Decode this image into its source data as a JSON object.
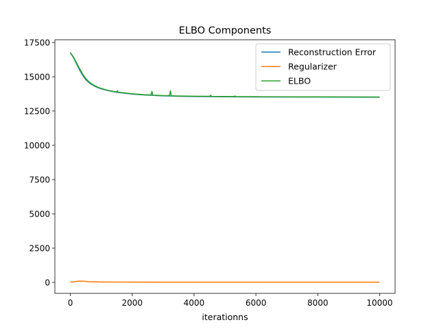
{
  "chart_data": {
    "type": "line",
    "title": "ELBO Components",
    "xlabel": "iterationns",
    "ylabel": "",
    "xlim": [
      -500,
      10500
    ],
    "ylim": [
      -800,
      17700
    ],
    "xticks": [
      0,
      2000,
      4000,
      6000,
      8000,
      10000
    ],
    "yticks": [
      0,
      2500,
      5000,
      7500,
      10000,
      12500,
      15000,
      17500
    ],
    "grid": false,
    "legend_position": "top-right",
    "series": [
      {
        "name": "Reconstruction Error",
        "color": "#1f77b4",
        "x": [
          0,
          100,
          200,
          300,
          400,
          500,
          600,
          700,
          800,
          900,
          1000,
          1200,
          1400,
          1600,
          1800,
          2000,
          2200,
          2400,
          2600,
          2800,
          3000,
          3500,
          4000,
          4500,
          5000,
          6000,
          7000,
          8000,
          9000,
          10000
        ],
        "y": [
          16750,
          16400,
          15950,
          15500,
          15100,
          14800,
          14580,
          14420,
          14300,
          14200,
          14120,
          14000,
          13910,
          13840,
          13790,
          13740,
          13700,
          13670,
          13650,
          13630,
          13610,
          13580,
          13560,
          13550,
          13540,
          13530,
          13520,
          13520,
          13515,
          13510
        ]
      },
      {
        "name": "Regularizer",
        "color": "#ff7f0e",
        "x": [
          0,
          100,
          200,
          300,
          400,
          500,
          600,
          800,
          1000,
          1500,
          2000,
          3000,
          4000,
          5000,
          6000,
          7000,
          8000,
          9000,
          10000
        ],
        "y": [
          20,
          40,
          70,
          90,
          85,
          70,
          55,
          40,
          30,
          25,
          20,
          18,
          18,
          17,
          17,
          16,
          16,
          16,
          15
        ]
      },
      {
        "name": "ELBO",
        "color": "#2ca02c",
        "x": [
          0,
          100,
          200,
          300,
          400,
          500,
          600,
          700,
          800,
          900,
          1000,
          1200,
          1400,
          1500,
          1520,
          1540,
          1600,
          1800,
          2000,
          2200,
          2400,
          2600,
          2640,
          2660,
          2680,
          2800,
          3000,
          3200,
          3240,
          3260,
          3280,
          3500,
          4000,
          4500,
          4540,
          4560,
          5000,
          5300,
          5320,
          5340,
          6000,
          7000,
          8000,
          9000,
          10000
        ],
        "y": [
          16770,
          16440,
          16020,
          15590,
          15185,
          14870,
          14635,
          14460,
          14340,
          14230,
          14150,
          14020,
          13930,
          13900,
          13980,
          13890,
          13860,
          13810,
          13760,
          13720,
          13690,
          13670,
          13930,
          13660,
          13655,
          13650,
          13630,
          13620,
          13970,
          13610,
          13605,
          13600,
          13580,
          13570,
          13650,
          13565,
          13560,
          13555,
          13600,
          13550,
          13545,
          13538,
          13535,
          13530,
          13525
        ]
      }
    ]
  }
}
